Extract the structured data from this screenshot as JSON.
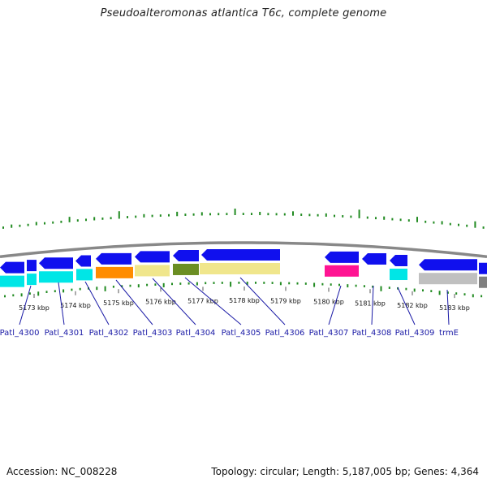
{
  "title": "Pseudoalteromonas atlantica T6c, complete genome",
  "footer": {
    "accession": "Accession: NC_008228",
    "stats": "Topology: circular; Length: 5,187,005 bp; Genes: 4,364"
  },
  "colors": {
    "backbone": "#888888",
    "gc_ticks": "#228b22",
    "gene_label": "#1a1aa6",
    "forward_strand": "#1010ee",
    "cog_colors": [
      "#00e6e6",
      "#ff8c00",
      "#f0e68c",
      "#6b8e23",
      "#ff1493",
      "#c0c0c0",
      "#808080"
    ]
  },
  "scale_ticks": [
    "5173 kbp",
    "5174 kbp",
    "5175 kbp",
    "5176 kbp",
    "5177 kbp",
    "5178 kbp",
    "5179 kbp",
    "5180 kbp",
    "5181 kbp",
    "5182 kbp",
    "5183 kbp"
  ],
  "genes": [
    {
      "label": "Patl_4300"
    },
    {
      "label": "Patl_4301"
    },
    {
      "label": "Patl_4302"
    },
    {
      "label": "Patl_4303"
    },
    {
      "label": "Patl_4304"
    },
    {
      "label": "Patl_4305"
    },
    {
      "label": "Patl_4306"
    },
    {
      "label": "Patl_4307"
    },
    {
      "label": "Patl_4308"
    },
    {
      "label": "Patl_4309"
    },
    {
      "label": "trmE"
    }
  ]
}
